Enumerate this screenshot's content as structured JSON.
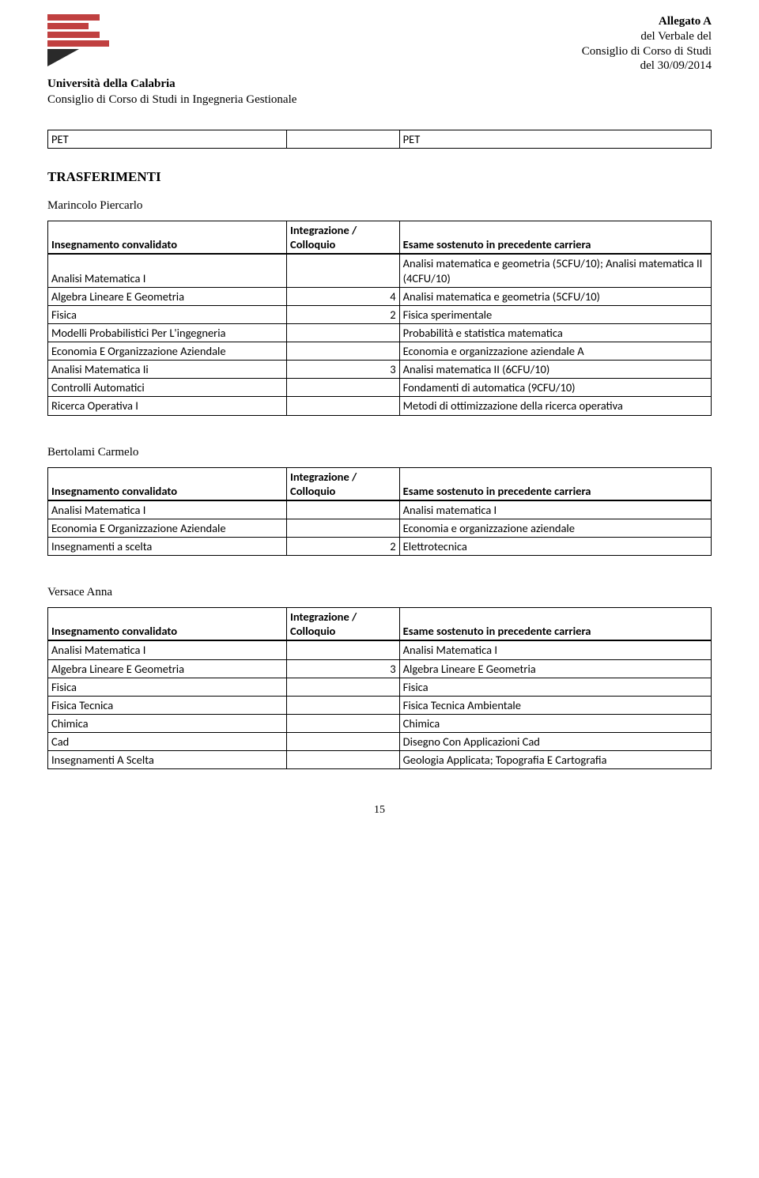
{
  "header": {
    "allegato": "Allegato A",
    "verbale": "del Verbale del",
    "consiglio": "Consiglio di Corso di Studi",
    "data": "del 30/09/2014",
    "uni": "Università della Calabria",
    "corso": "Consiglio di Corso di Studi in Ingegneria Gestionale"
  },
  "pet": {
    "left": "PET",
    "right": "PET"
  },
  "section_title": "TRASFERIMENTI",
  "col_headers": {
    "c1": "Insegnamento convalidato",
    "c2a": "Integrazione /",
    "c2b": "Colloquio",
    "c3": "Esame sostenuto in precedente carriera"
  },
  "persons": [
    {
      "name": "Marincolo Piercarlo",
      "rows": [
        {
          "c1": "Analisi Matematica I",
          "c2": "",
          "c3": "Analisi matematica e geometria (5CFU/10); Analisi matematica II (4CFU/10)"
        },
        {
          "c1": "Algebra Lineare E Geometria",
          "c2": "4",
          "c3": "Analisi matematica e geometria (5CFU/10)"
        },
        {
          "c1": "Fisica",
          "c2": "2",
          "c3": "Fisica sperimentale"
        },
        {
          "c1": "Modelli Probabilistici Per L'ingegneria",
          "c2": "",
          "c3": "Probabilità e statistica matematica"
        },
        {
          "c1": "Economia E Organizzazione Aziendale",
          "c2": "",
          "c3": "Economia e organizzazione aziendale A"
        },
        {
          "c1": "Analisi Matematica Ii",
          "c2": "3",
          "c3": "Analisi matematica II (6CFU/10)"
        },
        {
          "c1": "Controlli Automatici",
          "c2": "",
          "c3": "Fondamenti di automatica (9CFU/10)"
        },
        {
          "c1": "Ricerca Operativa I",
          "c2": "",
          "c3": "Metodi di ottimizzazione della ricerca operativa"
        }
      ]
    },
    {
      "name": "Bertolami Carmelo",
      "rows": [
        {
          "c1": "Analisi Matematica I",
          "c2": "",
          "c3": "Analisi matematica I"
        },
        {
          "c1": "Economia E Organizzazione Aziendale",
          "c2": "",
          "c3": "Economia e organizzazione aziendale"
        },
        {
          "c1": "Insegnamenti a scelta",
          "c2": "2",
          "c3": "Elettrotecnica"
        }
      ]
    },
    {
      "name": "Versace Anna",
      "rows": [
        {
          "c1": "Analisi Matematica I",
          "c2": "",
          "c3": "Analisi Matematica I"
        },
        {
          "c1": "Algebra Lineare E Geometria",
          "c2": "3",
          "c3": "Algebra Lineare E Geometria"
        },
        {
          "c1": "Fisica",
          "c2": "",
          "c3": "Fisica"
        },
        {
          "c1": "Fisica Tecnica",
          "c2": "",
          "c3": "Fisica Tecnica Ambientale"
        },
        {
          "c1": "Chimica",
          "c2": "",
          "c3": "Chimica"
        },
        {
          "c1": "Cad",
          "c2": "",
          "c3": "Disegno Con Applicazioni Cad"
        },
        {
          "c1": "Insegnamenti A Scelta",
          "c2": "",
          "c3": "Geologia Applicata; Topografia E Cartografia"
        }
      ]
    }
  ],
  "page_number": "15"
}
